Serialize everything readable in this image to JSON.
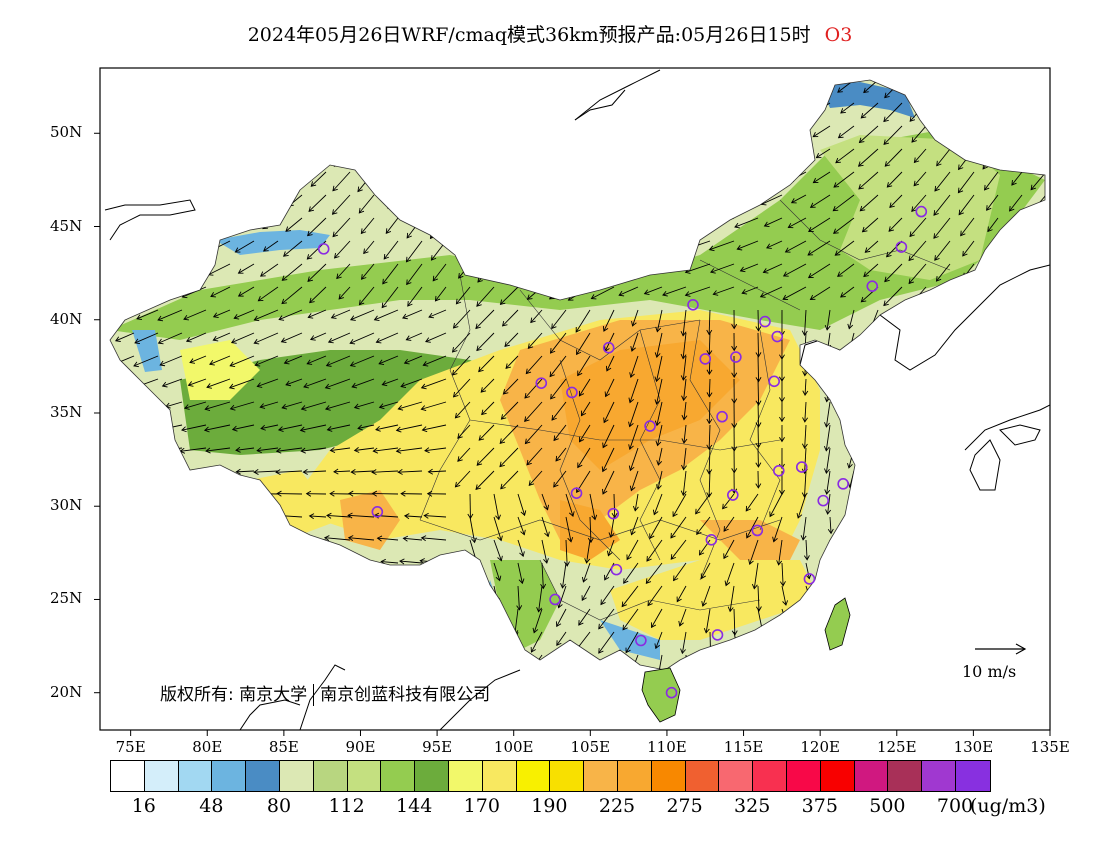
{
  "title": {
    "text": "2024年05月26日WRF/cmaq模式36km预报产品:05月26日15时",
    "pollutant": "O3",
    "pollutant_color": "#e02020"
  },
  "map": {
    "lon_ticks": [
      "75E",
      "80E",
      "85E",
      "90E",
      "95E",
      "100E",
      "105E",
      "110E",
      "115E",
      "120E",
      "125E",
      "130E",
      "135E"
    ],
    "lat_ticks": [
      "50N",
      "45N",
      "40N",
      "35N",
      "30N",
      "25N",
      "20N"
    ],
    "lon_range": [
      73,
      135
    ],
    "lat_range": [
      18,
      53.5
    ],
    "copyright_left": "版权所有: 南京大学",
    "copyright_right": "南京创蓝科技有限公司",
    "wind_reference": "10 m/s",
    "stations_color": "#8a2be2"
  },
  "colorbar": {
    "colors": [
      "#ffffff",
      "#d4eefa",
      "#a2d8f2",
      "#6cb4e0",
      "#4a8cc4",
      "#dce8b4",
      "#b8d680",
      "#c4e080",
      "#94cc50",
      "#6cac3c",
      "#f2f86a",
      "#f8e860",
      "#f8f000",
      "#f8e000",
      "#f8b448",
      "#f8a830",
      "#f88800",
      "#f06030",
      "#f86870",
      "#f83050",
      "#f80848",
      "#f80000",
      "#d01880",
      "#a83058",
      "#a038d0",
      "#8830e0"
    ],
    "labels": [
      "16",
      "48",
      "80",
      "112",
      "144",
      "170",
      "190",
      "225",
      "275",
      "325",
      "375",
      "500",
      "700"
    ],
    "unit": "(ug/m3)"
  }
}
